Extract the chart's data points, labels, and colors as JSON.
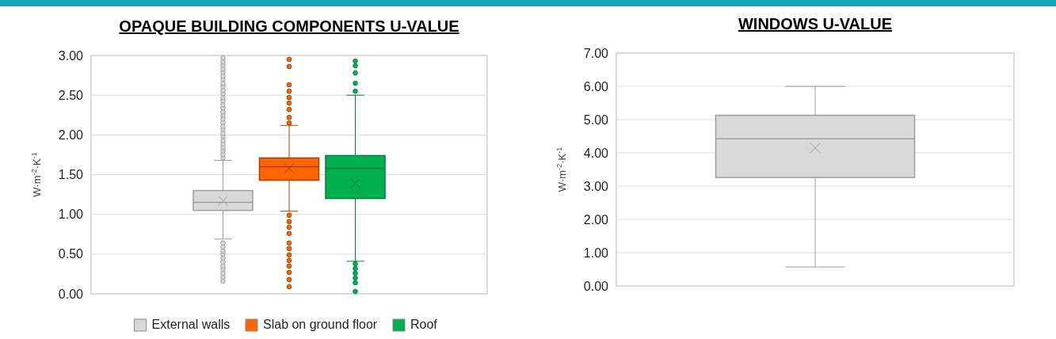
{
  "chart_data": [
    {
      "type": "box",
      "title": "OPAQUE BUILDING COMPONENTS U-VALUE",
      "ylabel": "W·m$^{-2}$·K$^{-1}$",
      "categories": [
        null
      ],
      "series": [
        {
          "name": "External walls",
          "color": "#d9d9d9",
          "boxes": [
            {
              "low": 0.69,
              "q1": 1.05,
              "median": 1.15,
              "q3": 1.3,
              "high": 1.68,
              "mean": 1.17,
              "outliers": [
                0.16,
                0.21,
                0.26,
                0.31,
                0.35,
                0.4,
                0.45,
                0.5,
                0.54,
                0.59,
                0.64,
                1.71,
                1.75,
                1.8,
                1.84,
                1.89,
                1.93,
                1.98,
                2.02,
                2.07,
                2.11,
                2.16,
                2.2,
                2.25,
                2.29,
                2.34,
                2.38,
                2.43,
                2.47,
                2.52,
                2.56,
                2.61,
                2.65,
                2.7,
                2.74,
                2.79,
                2.83,
                2.88,
                2.92,
                2.97
              ]
            }
          ]
        },
        {
          "name": "Slab on ground floor",
          "color": "#ff6600",
          "boxes": [
            {
              "low": 1.04,
              "q1": 1.43,
              "median": 1.6,
              "q3": 1.71,
              "high": 2.12,
              "mean": 1.58,
              "outliers": [
                0.09,
                0.18,
                0.27,
                0.35,
                0.42,
                0.49,
                0.57,
                0.64,
                0.76,
                0.84,
                0.91,
                0.99,
                2.15,
                2.22,
                2.32,
                2.4,
                2.47,
                2.55,
                2.63,
                2.86,
                2.95
              ]
            }
          ]
        },
        {
          "name": "Roof",
          "color": "#00b050",
          "boxes": [
            {
              "low": 0.41,
              "q1": 1.2,
              "median": 1.58,
              "q3": 1.74,
              "high": 2.5,
              "mean": 1.39,
              "outliers": [
                0.03,
                0.14,
                0.2,
                0.26,
                0.32,
                0.38,
                2.55,
                2.65,
                2.78,
                2.87,
                2.93
              ]
            }
          ]
        }
      ],
      "ylim": [
        0,
        3
      ],
      "yticks": [
        {
          "value": 0,
          "label": "0.00"
        },
        {
          "value": 0.5,
          "label": "0.50"
        },
        {
          "value": 1,
          "label": "1.00"
        },
        {
          "value": 1.5,
          "label": "1.50"
        },
        {
          "value": 2,
          "label": "2.00"
        },
        {
          "value": 2.5,
          "label": "2.50"
        },
        {
          "value": 3,
          "label": "3.00"
        }
      ],
      "grid": "y",
      "legend": "bottom"
    },
    {
      "type": "box",
      "title": "WINDOWS U-VALUE",
      "ylabel": "W·m$^{-2}$·K$^{-1}$",
      "categories": [
        null
      ],
      "color": "#d9d9d9",
      "boxes": [
        {
          "low": 0.57,
          "q1": 3.26,
          "median": 4.42,
          "q3": 5.13,
          "high": 6.0,
          "mean": 4.15
        }
      ],
      "ylim": [
        0,
        7
      ],
      "yticks": [
        {
          "value": 0,
          "label": "0.00"
        },
        {
          "value": 1,
          "label": "1.00"
        },
        {
          "value": 2,
          "label": "2.00"
        },
        {
          "value": 3,
          "label": "3.00"
        },
        {
          "value": 4,
          "label": "4.00"
        },
        {
          "value": 5,
          "label": "5.00"
        },
        {
          "value": 6,
          "label": "6.00"
        },
        {
          "value": 7,
          "label": "7.00"
        }
      ],
      "grid": "y"
    }
  ]
}
